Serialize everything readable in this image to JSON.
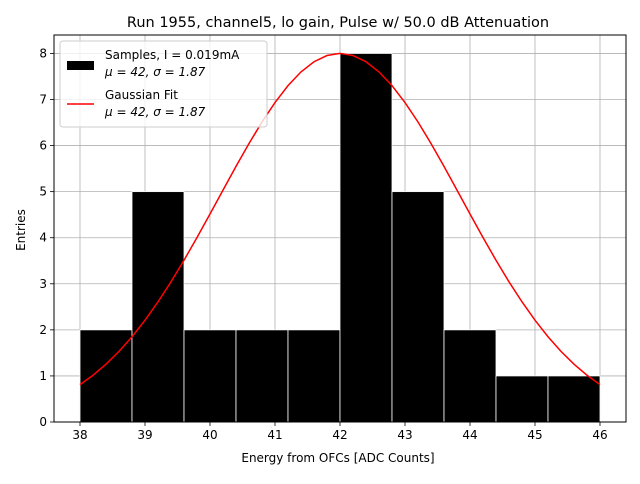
{
  "chart_data": {
    "type": "bar",
    "title": "Run 1955, channel5, lo gain, Pulse w/ 50.0 dB Attenuation",
    "xlabel": "Energy from OFCs [ADC Counts]",
    "ylabel": "Entries",
    "xlim": [
      37.6,
      46.4
    ],
    "ylim": [
      0,
      8.4
    ],
    "xticks": [
      38,
      39,
      40,
      41,
      42,
      43,
      44,
      45,
      46
    ],
    "yticks": [
      0,
      1,
      2,
      3,
      4,
      5,
      6,
      7,
      8
    ],
    "grid": true,
    "legend_position": "top-left",
    "histogram": {
      "name": "Samples, I = 0.019mA",
      "stats": "μ = 42, σ = 1.87",
      "color": "#000000",
      "bins": [
        {
          "start": 38.0,
          "end": 38.8,
          "count": 2
        },
        {
          "start": 38.8,
          "end": 39.6,
          "count": 5
        },
        {
          "start": 39.6,
          "end": 40.4,
          "count": 2
        },
        {
          "start": 40.4,
          "end": 41.2,
          "count": 2
        },
        {
          "start": 41.2,
          "end": 42.0,
          "count": 2
        },
        {
          "start": 42.0,
          "end": 42.8,
          "count": 8
        },
        {
          "start": 42.8,
          "end": 43.6,
          "count": 5
        },
        {
          "start": 43.6,
          "end": 44.4,
          "count": 2
        },
        {
          "start": 44.4,
          "end": 45.2,
          "count": 1
        },
        {
          "start": 45.2,
          "end": 46.0,
          "count": 1
        }
      ]
    },
    "fit": {
      "name": "Gaussian Fit",
      "stats": "μ = 42, σ = 1.87",
      "color": "#ff0000",
      "mu": 42,
      "sigma": 1.87,
      "amplitude": 8.0,
      "x_range": [
        38,
        46
      ]
    }
  }
}
